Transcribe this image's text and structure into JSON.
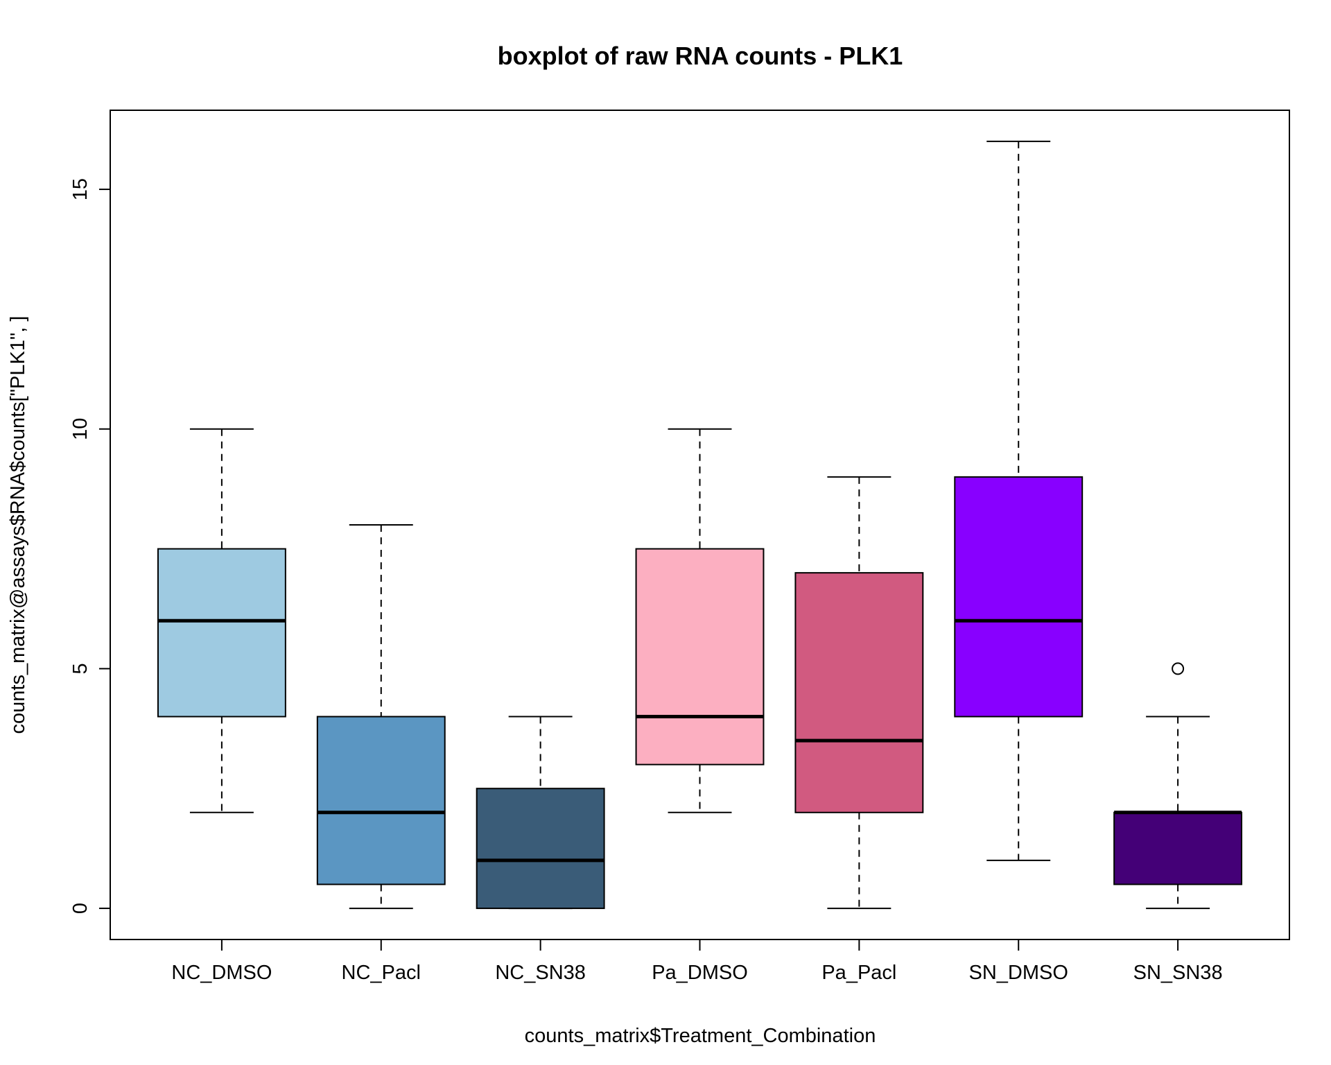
{
  "chart_data": {
    "type": "boxplot",
    "title": "boxplot of raw RNA counts - PLK1",
    "xlabel": "counts_matrix$Treatment_Combination",
    "ylabel": "counts_matrix@assays$RNA$counts[\"PLK1\", ]",
    "ylim": [
      -0.65,
      16.65
    ],
    "yticks": [
      0,
      5,
      10,
      15
    ],
    "grid": false,
    "legend": "none",
    "categories": [
      "NC_DMSO",
      "NC_Pacl",
      "NC_SN38",
      "Pa_DMSO",
      "Pa_Pacl",
      "SN_DMSO",
      "SN_SN38"
    ],
    "boxes": [
      {
        "category": "NC_DMSO",
        "whisker_low": 2,
        "q1": 4,
        "median": 6,
        "q3": 7.5,
        "whisker_high": 10,
        "outliers": [],
        "color": "#9ECAE1"
      },
      {
        "category": "NC_Pacl",
        "whisker_low": 0,
        "q1": 0.5,
        "median": 2,
        "q3": 4,
        "whisker_high": 8,
        "outliers": [],
        "color": "#5B96C2"
      },
      {
        "category": "NC_SN38",
        "whisker_low": 0,
        "q1": 0,
        "median": 1,
        "q3": 2.5,
        "whisker_high": 4,
        "outliers": [],
        "color": "#3A5C78"
      },
      {
        "category": "Pa_DMSO",
        "whisker_low": 2,
        "q1": 3,
        "median": 4,
        "q3": 7.5,
        "whisker_high": 10,
        "outliers": [],
        "color": "#FCAFC1"
      },
      {
        "category": "Pa_Pacl",
        "whisker_low": 0,
        "q1": 2,
        "median": 3.5,
        "q3": 7,
        "whisker_high": 9,
        "outliers": [],
        "color": "#D15A80"
      },
      {
        "category": "SN_DMSO",
        "whisker_low": 1,
        "q1": 4,
        "median": 6,
        "q3": 9,
        "whisker_high": 16,
        "outliers": [],
        "color": "#8800FF"
      },
      {
        "category": "SN_SN38",
        "whisker_low": 0,
        "q1": 0.5,
        "median": 2,
        "q3": 2,
        "whisker_high": 4,
        "outliers": [
          5
        ],
        "color": "#440077"
      }
    ]
  }
}
